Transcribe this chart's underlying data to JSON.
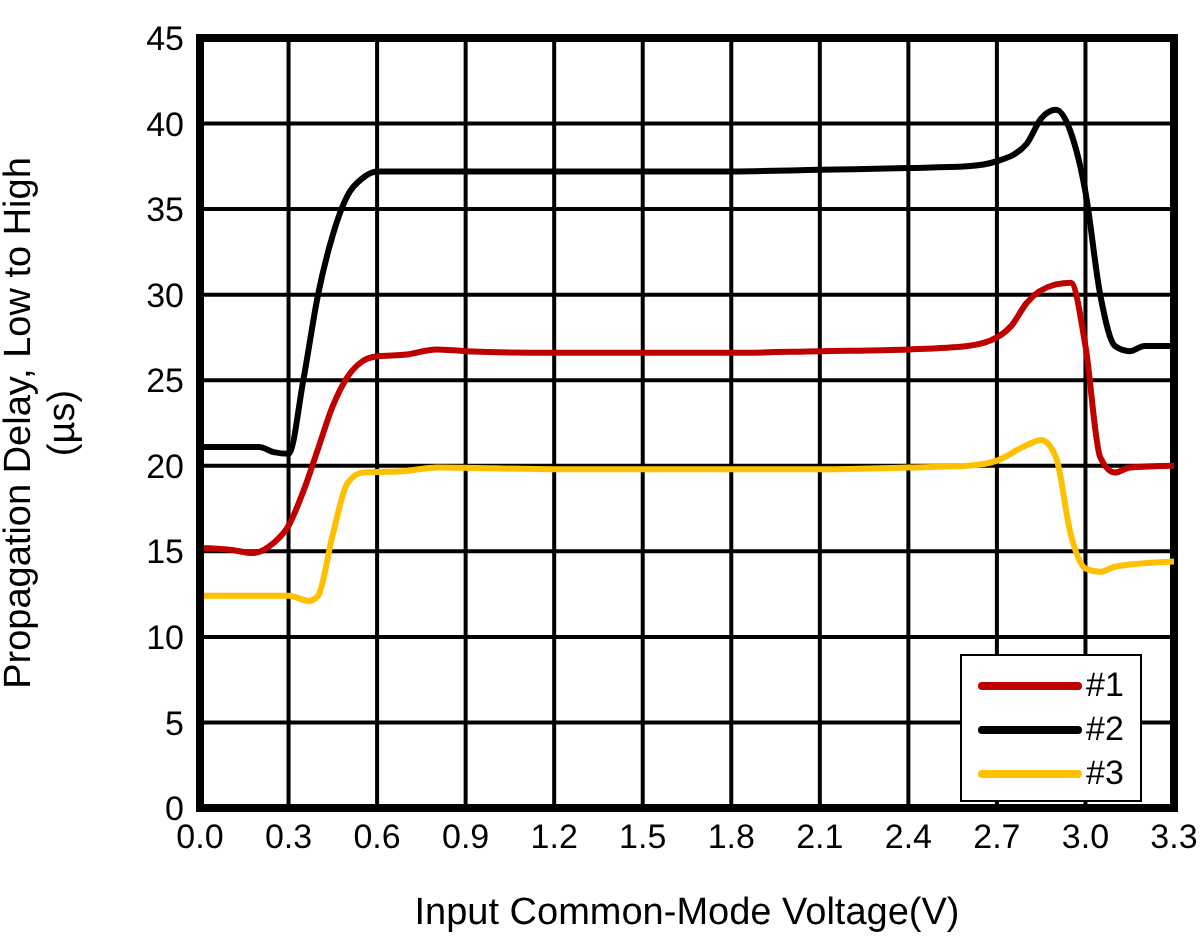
{
  "chart_data": {
    "type": "line",
    "xlabel": "Input Common-Mode Voltage(V)",
    "ylabel": "Propagation Delay, Low to High (µs)",
    "xlim": [
      0,
      3.3
    ],
    "xticks": [
      {
        "value": 0,
        "label": "0.0"
      },
      0.3,
      0.6,
      0.9,
      1.2,
      1.5,
      1.8,
      2.1,
      2.4,
      2.7,
      {
        "value": 3,
        "label": "3.0"
      },
      3.3
    ],
    "ylim": [
      0,
      45
    ],
    "yticks": [
      0,
      5,
      10,
      15,
      20,
      25,
      30,
      35,
      40,
      45
    ],
    "grid": true,
    "legend": "bottom right",
    "marker": "none",
    "line_style": "solid",
    "series": [
      {
        "name": "#1",
        "color": "#c00000",
        "x": [
          0,
          0.1,
          0.18,
          0.25,
          0.3,
          0.35,
          0.4,
          0.45,
          0.5,
          0.55,
          0.6,
          0.7,
          0.8,
          0.9,
          1.2,
          1.5,
          1.8,
          2.1,
          2.4,
          2.6,
          2.7,
          2.75,
          2.8,
          2.9,
          2.95,
          3.0,
          3.05,
          3.1,
          3.15,
          3.3
        ],
        "values": [
          15.2,
          15.1,
          14.9,
          15.5,
          16.5,
          18.5,
          21,
          23.5,
          25.2,
          26.1,
          26.4,
          26.5,
          26.8,
          26.7,
          26.6,
          26.6,
          26.6,
          26.7,
          26.8,
          27,
          27.5,
          28.2,
          29.5,
          30.6,
          30.7,
          27,
          20.5,
          19.6,
          19.9,
          20
        ]
      },
      {
        "name": "#2",
        "color": "#000000",
        "x": [
          0,
          0.2,
          0.25,
          0.3,
          0.35,
          0.4,
          0.45,
          0.5,
          0.55,
          0.6,
          0.9,
          1.2,
          1.5,
          1.8,
          2.1,
          2.4,
          2.6,
          2.7,
          2.8,
          2.85,
          2.9,
          2.95,
          3.0,
          3.05,
          3.1,
          3.15,
          3.2,
          3.3
        ],
        "values": [
          21.1,
          21.1,
          20.8,
          20.7,
          25,
          30,
          33.5,
          35.8,
          36.8,
          37.2,
          37.2,
          37.2,
          37.2,
          37.2,
          37.3,
          37.4,
          37.5,
          37.8,
          38.8,
          40.3,
          40.8,
          39.5,
          36,
          30,
          27,
          26.7,
          27,
          27
        ]
      },
      {
        "name": "#3",
        "color": "#ffc000",
        "x": [
          0,
          0.3,
          0.37,
          0.4,
          0.45,
          0.5,
          0.55,
          0.7,
          0.8,
          1.2,
          1.5,
          1.8,
          2.1,
          2.4,
          2.6,
          2.7,
          2.8,
          2.85,
          2.9,
          2.95,
          3.0,
          3.05,
          3.1,
          3.3
        ],
        "values": [
          12.4,
          12.4,
          12.1,
          12.4,
          16,
          19,
          19.6,
          19.7,
          19.9,
          19.8,
          19.8,
          19.8,
          19.8,
          19.9,
          20,
          20.3,
          21.2,
          21.5,
          20.5,
          16,
          14,
          13.8,
          14.1,
          14.4
        ]
      }
    ]
  }
}
